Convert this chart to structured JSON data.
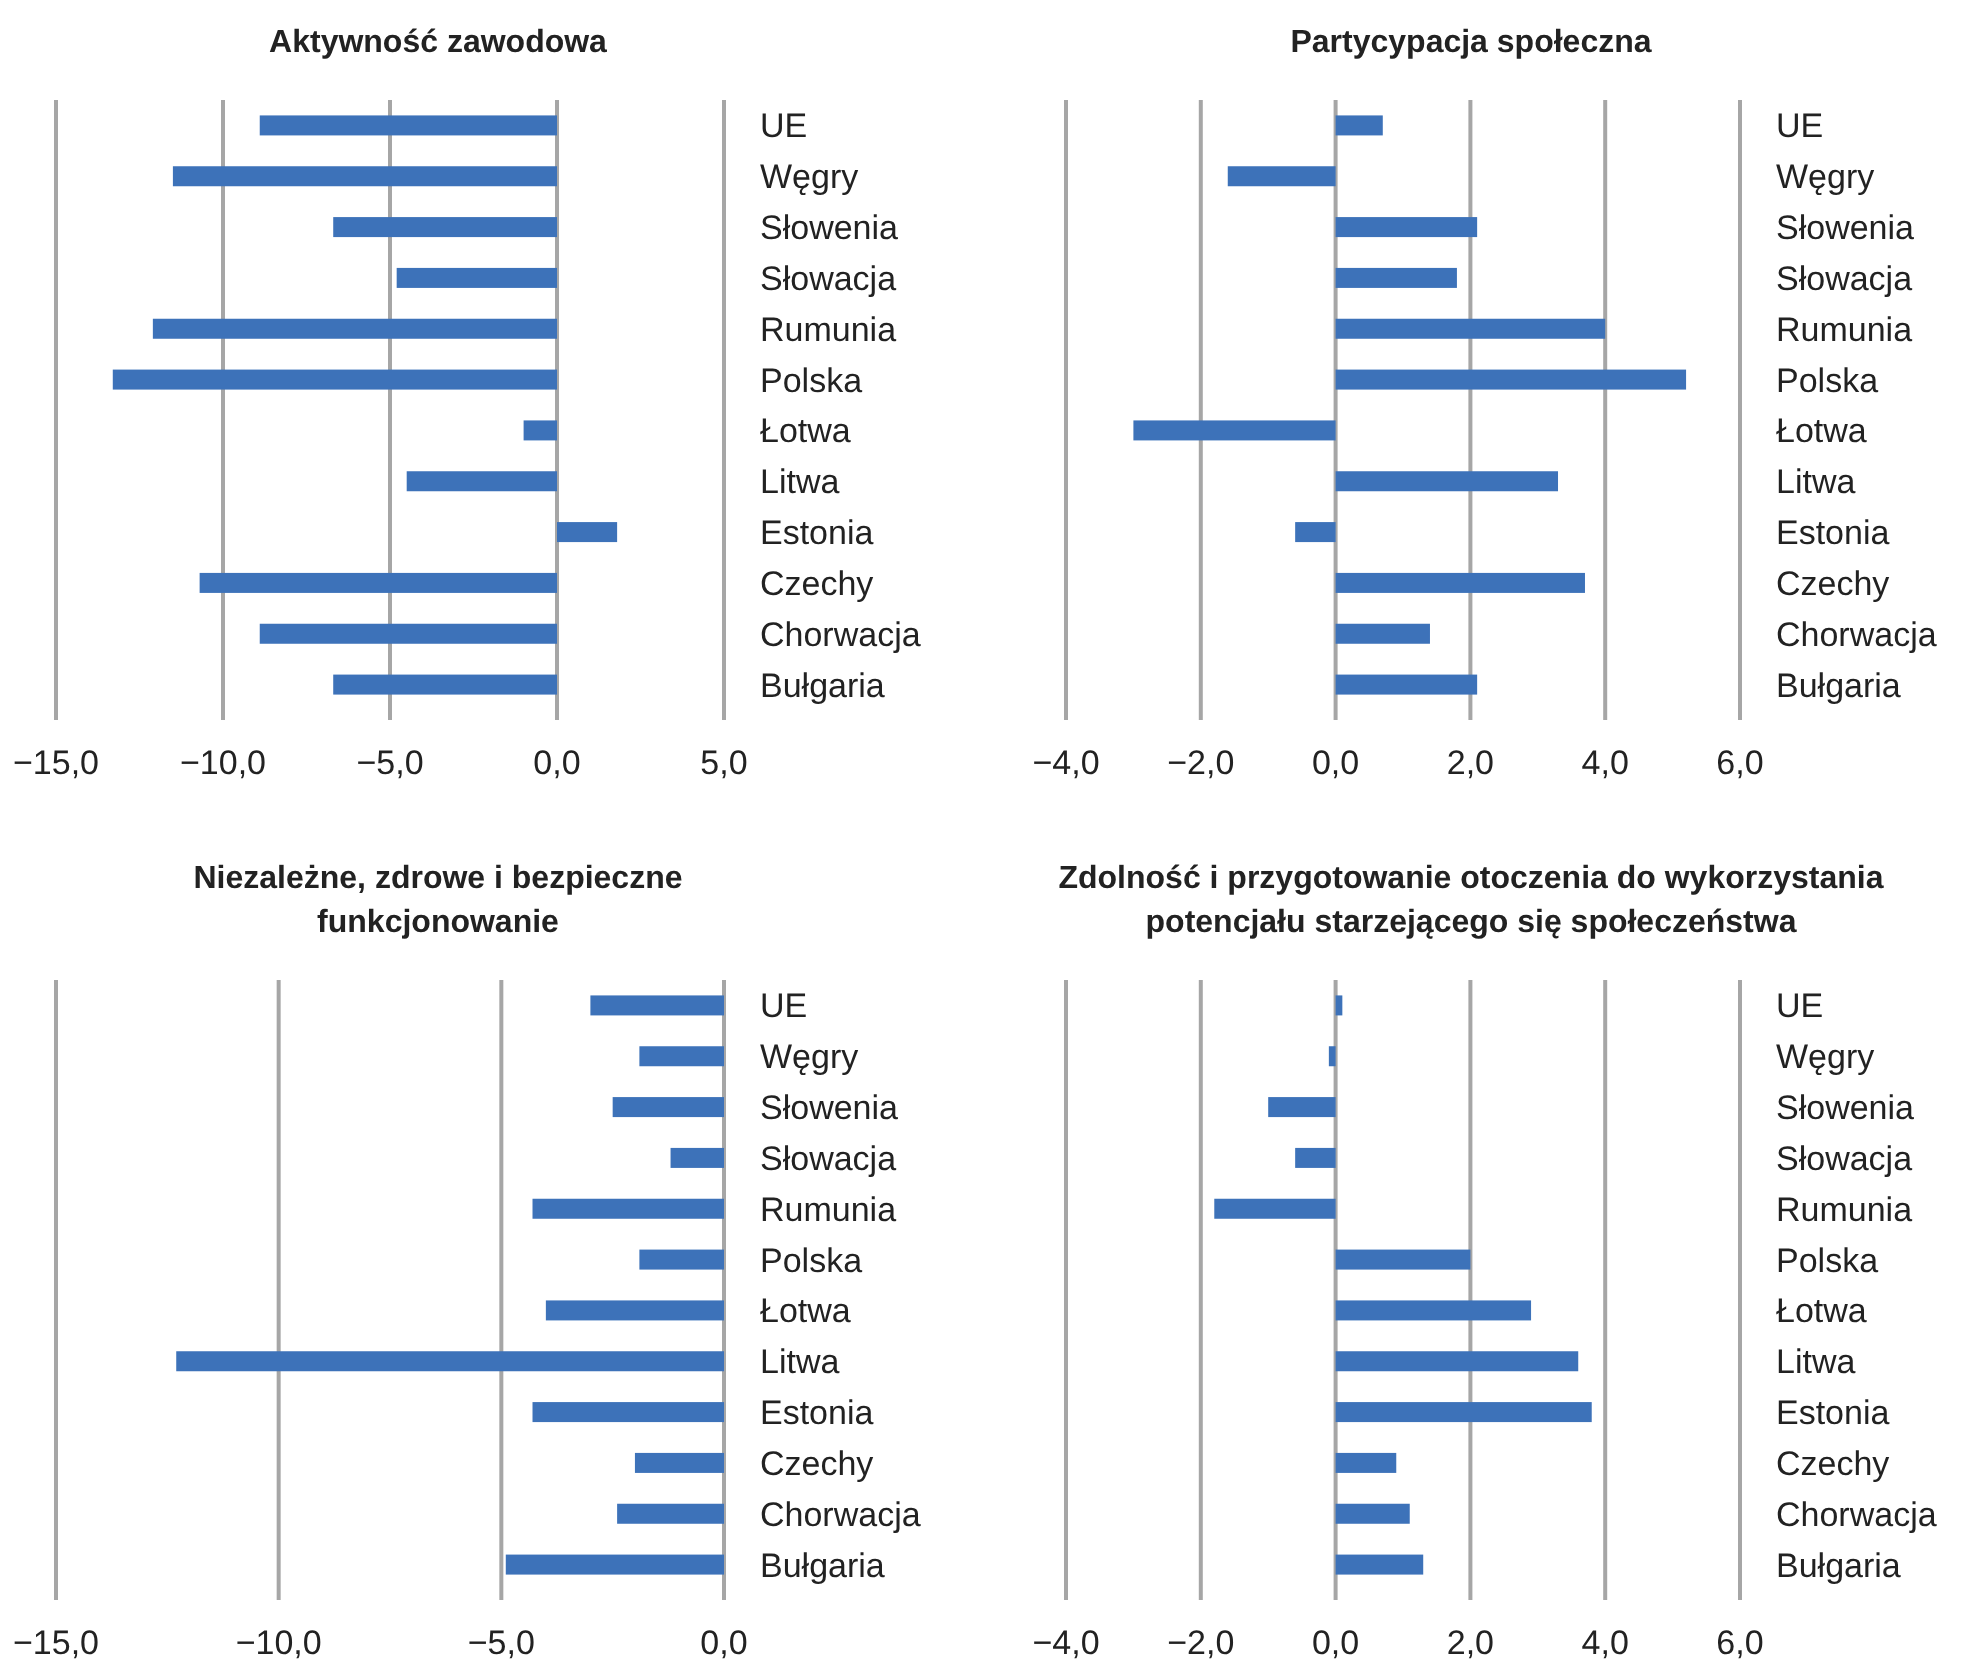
{
  "chart_data": [
    {
      "type": "bar",
      "orientation": "horizontal",
      "title": "Aktywność zawodowa",
      "categories": [
        "UE",
        "Węgry",
        "Słowenia",
        "Słowacja",
        "Rumunia",
        "Polska",
        "Łotwa",
        "Litwa",
        "Estonia",
        "Czechy",
        "Chorwacja",
        "Bułgaria"
      ],
      "series": [
        {
          "color": "#3d72b9",
          "values": [
            -8.9,
            -11.5,
            -6.7,
            -4.8,
            -12.1,
            -13.3,
            -1.0,
            -4.5,
            1.8,
            -10.7,
            -8.9,
            -6.7
          ]
        }
      ],
      "xlim": [
        -15,
        5
      ],
      "xticks": [
        {
          "value": -15,
          "label": "−15,0"
        },
        {
          "value": -10,
          "label": "−10,0"
        },
        {
          "value": -5,
          "label": "−5,0"
        },
        {
          "value": 0,
          "label": "0,0"
        },
        {
          "value": 5,
          "label": "5,0"
        }
      ],
      "grid": "x"
    },
    {
      "type": "bar",
      "orientation": "horizontal",
      "title": "Partycypacja społeczna",
      "categories": [
        "UE",
        "Węgry",
        "Słowenia",
        "Słowacja",
        "Rumunia",
        "Polska",
        "Łotwa",
        "Litwa",
        "Estonia",
        "Czechy",
        "Chorwacja",
        "Bułgaria"
      ],
      "series": [
        {
          "color": "#3d72b9",
          "values": [
            0.7,
            -1.6,
            2.1,
            1.8,
            4.0,
            5.2,
            -3.0,
            3.3,
            -0.6,
            3.7,
            1.4,
            2.1
          ]
        }
      ],
      "xlim": [
        -4,
        6
      ],
      "xticks": [
        {
          "value": -4,
          "label": "−4,0"
        },
        {
          "value": -2,
          "label": "−2,0"
        },
        {
          "value": 0,
          "label": "0,0"
        },
        {
          "value": 2,
          "label": "2,0"
        },
        {
          "value": 4,
          "label": "4,0"
        },
        {
          "value": 6,
          "label": "6,0"
        }
      ],
      "grid": "x"
    },
    {
      "type": "bar",
      "orientation": "horizontal",
      "title": "Niezależne, zdrowe i bezpieczne funkcjonowanie",
      "categories": [
        "UE",
        "Węgry",
        "Słowenia",
        "Słowacja",
        "Rumunia",
        "Polska",
        "Łotwa",
        "Litwa",
        "Estonia",
        "Czechy",
        "Chorwacja",
        "Bułgaria"
      ],
      "series": [
        {
          "color": "#3d72b9",
          "values": [
            -3.0,
            -1.9,
            -2.5,
            -1.2,
            -4.3,
            -1.9,
            -4.0,
            -12.3,
            -4.3,
            -2.0,
            -2.4,
            -4.9
          ]
        }
      ],
      "xlim": [
        -15,
        0
      ],
      "xticks": [
        {
          "value": -15,
          "label": "−15,0"
        },
        {
          "value": -10,
          "label": "−10,0"
        },
        {
          "value": -5,
          "label": "−5,0"
        },
        {
          "value": 0,
          "label": "0,0"
        }
      ],
      "grid": "x"
    },
    {
      "type": "bar",
      "orientation": "horizontal",
      "title": "Zdolność i przygotowanie otoczenia do wykorzystania potencjału starzejącego się społeczeństwa",
      "categories": [
        "UE",
        "Węgry",
        "Słowenia",
        "Słowacja",
        "Rumunia",
        "Polska",
        "Łotwa",
        "Litwa",
        "Estonia",
        "Czechy",
        "Chorwacja",
        "Bułgaria"
      ],
      "series": [
        {
          "color": "#3d72b9",
          "values": [
            0.1,
            -0.1,
            -1.0,
            -0.6,
            -1.8,
            2.0,
            2.9,
            3.6,
            3.8,
            0.9,
            1.1,
            1.3
          ]
        }
      ],
      "xlim": [
        -4,
        6
      ],
      "xticks": [
        {
          "value": -4,
          "label": "−4,0"
        },
        {
          "value": -2,
          "label": "−2,0"
        },
        {
          "value": 0,
          "label": "0,0"
        },
        {
          "value": 2,
          "label": "2,0"
        },
        {
          "value": 4,
          "label": "4,0"
        },
        {
          "value": 6,
          "label": "6,0"
        }
      ],
      "grid": "x"
    }
  ]
}
